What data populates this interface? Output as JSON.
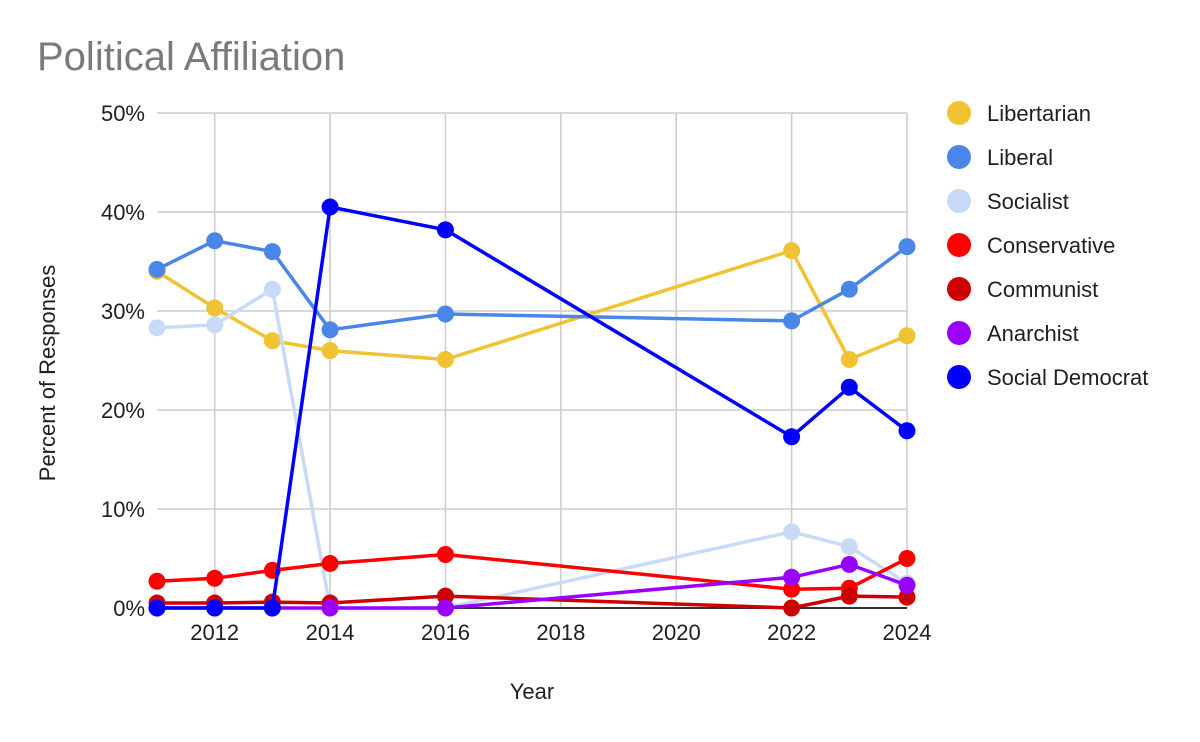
{
  "chart_data": {
    "type": "line",
    "title": "Political Affiliation",
    "xlabel": "Year",
    "ylabel": "Percent of Responses",
    "x": [
      2011,
      2012,
      2013,
      2014,
      2016,
      2022,
      2023,
      2024
    ],
    "xlim": [
      2011,
      2024
    ],
    "xticks": [
      2012,
      2014,
      2016,
      2018,
      2020,
      2022,
      2024
    ],
    "ylim": [
      0,
      50
    ],
    "yticks": [
      0,
      10,
      20,
      30,
      40,
      50
    ],
    "ytick_labels": [
      "0%",
      "10%",
      "20%",
      "30%",
      "40%",
      "50%"
    ],
    "grid": true,
    "legend_position": "right",
    "series": [
      {
        "name": "Libertarian",
        "color": "#f1c232",
        "values": [
          34.0,
          30.3,
          27.0,
          26.0,
          25.1,
          36.1,
          25.1,
          27.5
        ]
      },
      {
        "name": "Liberal",
        "color": "#4a86e8",
        "values": [
          34.2,
          37.1,
          36.0,
          28.1,
          29.7,
          29.0,
          32.2,
          36.5
        ]
      },
      {
        "name": "Socialist",
        "color": "#c9daf8",
        "values": [
          28.3,
          28.6,
          32.2,
          0.0,
          0.0,
          7.7,
          6.2,
          2.5
        ]
      },
      {
        "name": "Conservative",
        "color": "#ff0000",
        "values": [
          2.7,
          3.0,
          3.8,
          4.5,
          5.4,
          1.9,
          2.0,
          5.0
        ]
      },
      {
        "name": "Communist",
        "color": "#cc0000",
        "values": [
          0.5,
          0.5,
          0.6,
          0.5,
          1.2,
          0.0,
          1.2,
          1.1
        ]
      },
      {
        "name": "Anarchist",
        "color": "#9900ff",
        "values": [
          0.0,
          0.0,
          0.0,
          0.0,
          0.0,
          3.1,
          4.4,
          2.3
        ]
      },
      {
        "name": "Social Democrat",
        "color": "#0000ff",
        "values": [
          0.0,
          0.0,
          0.0,
          40.5,
          38.2,
          17.3,
          22.3,
          17.9
        ]
      }
    ]
  }
}
